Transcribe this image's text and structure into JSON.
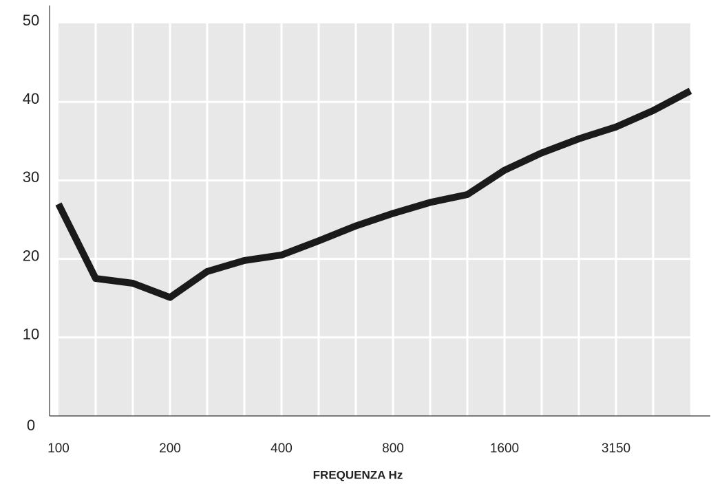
{
  "chart_data": {
    "type": "line",
    "x_label": "FREQUENZA Hz",
    "categories": [
      "100",
      null,
      null,
      "200",
      null,
      null,
      "400",
      null,
      null,
      "800",
      null,
      null,
      "1600",
      null,
      null,
      "3150",
      null,
      null
    ],
    "series": [
      {
        "color": "#1a1a1a",
        "values": [
          27,
          17.5,
          16.9,
          15.1,
          18.4,
          19.8,
          20.5,
          22.3,
          24.2,
          25.8,
          27.2,
          28.2,
          31.3,
          33.5,
          35.3,
          36.8,
          38.9,
          41.4
        ]
      }
    ],
    "ylim": [
      0,
      50
    ],
    "yticks": [
      0,
      10,
      20,
      30,
      40,
      50
    ],
    "grid": true
  }
}
